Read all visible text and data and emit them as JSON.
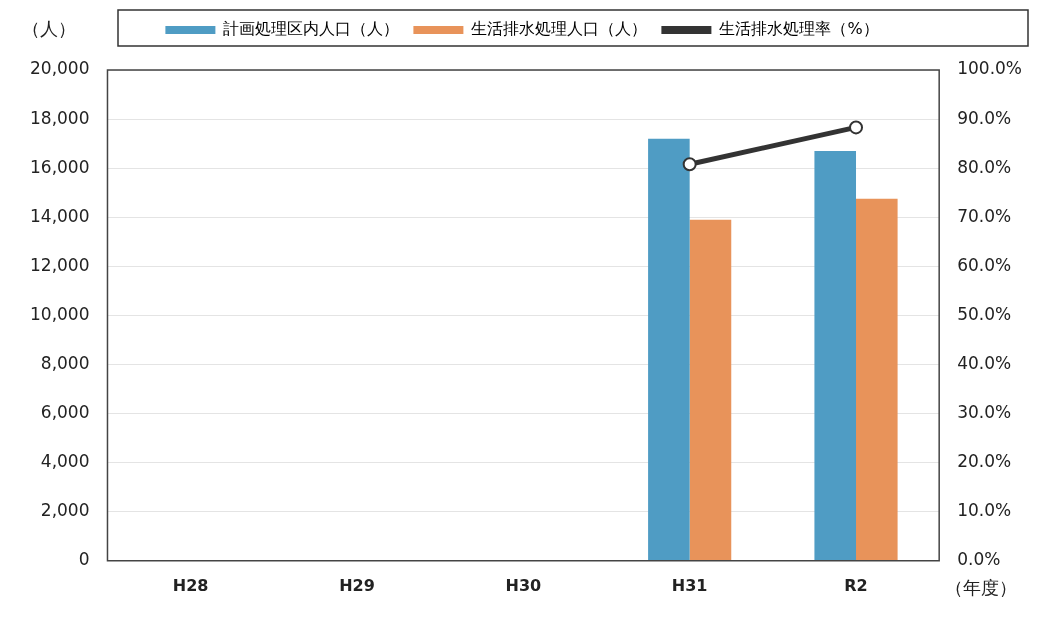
{
  "chart_data": {
    "type": "bar",
    "ylabel": "（人）",
    "xlabel": "（年度）",
    "categories": [
      "H28",
      "H29",
      "H30",
      "H31",
      "R2"
    ],
    "series": [
      {
        "name": "計画処理区内人口（人）",
        "color": "#4f9cc4",
        "values": [
          null,
          null,
          null,
          17200,
          16700
        ]
      },
      {
        "name": "生活排水処理人口（人）",
        "color": "#e8935a",
        "values": [
          null,
          null,
          null,
          13900,
          14750
        ]
      },
      {
        "name": "生活排水処理率（%）",
        "type": "line",
        "axis": "y2",
        "color": "#333333",
        "marker": "circle",
        "values": [
          null,
          null,
          null,
          80.8,
          88.3
        ]
      }
    ],
    "ylim": [
      0,
      20000
    ],
    "yticks": [
      0,
      {
        "value": 2000,
        "label": "2,000"
      },
      {
        "value": 4000,
        "label": "4,000"
      },
      {
        "value": 6000,
        "label": "6,000"
      },
      {
        "value": 8000,
        "label": "8,000"
      },
      {
        "value": 10000,
        "label": "10,000"
      },
      {
        "value": 12000,
        "label": "12,000"
      },
      {
        "value": 14000,
        "label": "14,000"
      },
      {
        "value": 16000,
        "label": "16,000"
      },
      {
        "value": 18000,
        "label": "18,000"
      },
      {
        "value": 20000,
        "label": "20,000"
      }
    ],
    "y2lim": [
      0,
      100
    ],
    "y2ticks": [
      {
        "value": 0,
        "label": "0.0%"
      },
      {
        "value": 10,
        "label": "10.0%"
      },
      {
        "value": 20,
        "label": "20.0%"
      },
      {
        "value": 30,
        "label": "30.0%"
      },
      {
        "value": 40,
        "label": "40.0%"
      },
      {
        "value": 50,
        "label": "50.0%"
      },
      {
        "value": 60,
        "label": "60.0%"
      },
      {
        "value": 70,
        "label": "70.0%"
      },
      {
        "value": 80,
        "label": "80.0%"
      },
      {
        "value": 90,
        "label": "90.0%"
      },
      {
        "value": 100,
        "label": "100.0%"
      }
    ],
    "grid": "y",
    "legend": "top"
  }
}
